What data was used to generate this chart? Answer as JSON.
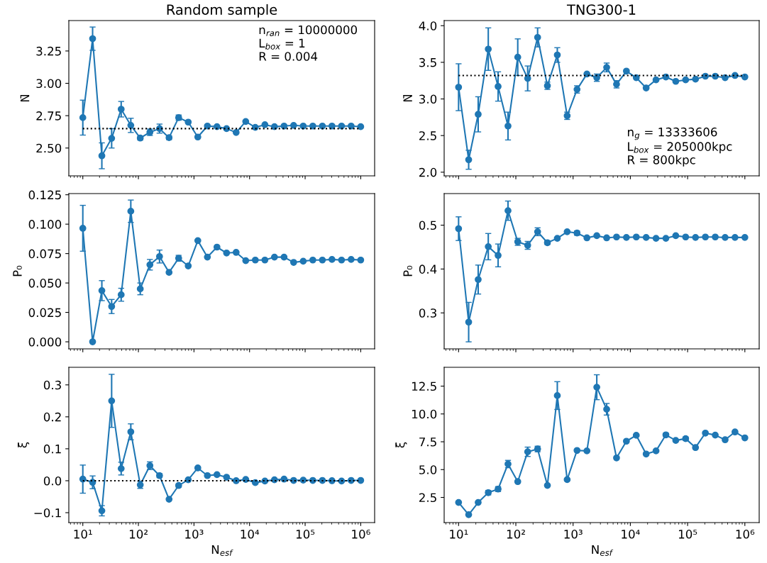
{
  "chart_data": [
    {
      "type": "line",
      "title": "Random sample",
      "ylabel": "N̄",
      "log": "x",
      "marker": "circle",
      "line_style": "solid",
      "grid": false,
      "legend": false,
      "tick_labels": "y",
      "x": [
        10,
        15,
        22,
        33,
        49,
        73,
        108,
        161,
        240,
        356,
        530,
        788,
        1172,
        1743,
        2593,
        3857,
        5736,
        8532,
        12690,
        18874,
        28072,
        41753,
        62102,
        92367,
        137382,
        204336,
        303920,
        452035,
        672336,
        1000000
      ],
      "xlim": [
        5.6,
        1780000
      ],
      "xticks": [
        {
          "value": 10,
          "label": null
        },
        {
          "value": 100,
          "label": null
        },
        {
          "value": 1000,
          "label": null
        },
        {
          "value": 10000,
          "label": null
        },
        {
          "value": 100000,
          "label": null
        },
        {
          "value": 1000000,
          "label": null
        }
      ],
      "ylim": [
        2.285,
        3.485
      ],
      "yticks": [
        {
          "value": 2.5,
          "label": "2.50"
        },
        {
          "value": 2.75,
          "label": "2.75"
        },
        {
          "value": 3.0,
          "label": "3.00"
        },
        {
          "value": 3.25,
          "label": "3.25"
        }
      ],
      "ref_lines": [
        {
          "axis": "y",
          "value": 2.65,
          "color": "#000000",
          "line_style": "dotted"
        }
      ],
      "annotations": [
        "n$_{ran}$ = 10000000",
        "L$_{box}$ = 1",
        "R = 0.004"
      ],
      "series": [
        {
          "color": "#1f77b4",
          "values": [
            2.735,
            3.345,
            2.44,
            2.575,
            2.8,
            2.675,
            2.577,
            2.622,
            2.65,
            2.58,
            2.735,
            2.7,
            2.585,
            2.67,
            2.665,
            2.65,
            2.62,
            2.705,
            2.66,
            2.68,
            2.665,
            2.67,
            2.675,
            2.67,
            2.67,
            2.67,
            2.67,
            2.67,
            2.67,
            2.665
          ],
          "errors": [
            0.135,
            0.09,
            0.1,
            0.075,
            0.06,
            0.055,
            0.015,
            0.025,
            0.035,
            0.015,
            0.02,
            null,
            null,
            null,
            null,
            null,
            null,
            null,
            null,
            null,
            null,
            null,
            null,
            null,
            null,
            null,
            null,
            null,
            null,
            null
          ]
        }
      ]
    },
    {
      "type": "line",
      "title": "TNG300-1",
      "ylabel": "N̄",
      "log": "x",
      "marker": "circle",
      "line_style": "solid",
      "grid": false,
      "legend": false,
      "tick_labels": "y",
      "x": [
        10,
        15,
        22,
        33,
        49,
        73,
        108,
        161,
        240,
        356,
        530,
        788,
        1172,
        1743,
        2593,
        3857,
        5736,
        8532,
        12690,
        18874,
        28072,
        41753,
        62102,
        92367,
        137382,
        204336,
        303920,
        452035,
        672336,
        1000000
      ],
      "xlim": [
        5.6,
        1780000
      ],
      "xticks": [
        {
          "value": 10,
          "label": null
        },
        {
          "value": 100,
          "label": null
        },
        {
          "value": 1000,
          "label": null
        },
        {
          "value": 10000,
          "label": null
        },
        {
          "value": 100000,
          "label": null
        },
        {
          "value": 1000000,
          "label": null
        }
      ],
      "ylim": [
        1.95,
        4.07
      ],
      "yticks": [
        {
          "value": 2.0,
          "label": "2.0"
        },
        {
          "value": 2.5,
          "label": "2.5"
        },
        {
          "value": 3.0,
          "label": "3.0"
        },
        {
          "value": 3.5,
          "label": "3.5"
        },
        {
          "value": 4.0,
          "label": "4.0"
        }
      ],
      "ref_lines": [
        {
          "axis": "y",
          "value": 3.32,
          "color": "#000000",
          "line_style": "dotted"
        }
      ],
      "annotations": [
        "n$_{g}$ = 13333606",
        "L$_{box}$ = 205000kpc",
        "R = 800kpc"
      ],
      "series": [
        {
          "color": "#1f77b4",
          "values": [
            3.16,
            2.17,
            2.79,
            3.68,
            3.17,
            2.63,
            3.57,
            3.28,
            3.84,
            3.18,
            3.6,
            2.77,
            3.13,
            3.34,
            3.29,
            3.43,
            3.2,
            3.38,
            3.29,
            3.15,
            3.26,
            3.3,
            3.24,
            3.26,
            3.27,
            3.31,
            3.31,
            3.29,
            3.32,
            3.3
          ],
          "errors": [
            0.32,
            0.13,
            0.24,
            0.29,
            0.2,
            0.19,
            0.25,
            0.17,
            0.13,
            0.05,
            0.1,
            0.05,
            0.05,
            null,
            0.05,
            0.06,
            0.05,
            null,
            null,
            null,
            null,
            null,
            null,
            null,
            null,
            null,
            null,
            null,
            null,
            null
          ]
        }
      ]
    },
    {
      "type": "line",
      "ylabel": "P₀",
      "log": "x",
      "marker": "circle",
      "line_style": "solid",
      "grid": false,
      "legend": false,
      "tick_labels": "y",
      "x": [
        10,
        15,
        22,
        33,
        49,
        73,
        108,
        161,
        240,
        356,
        530,
        788,
        1172,
        1743,
        2593,
        3857,
        5736,
        8532,
        12690,
        18874,
        28072,
        41753,
        62102,
        92367,
        137382,
        204336,
        303920,
        452035,
        672336,
        1000000
      ],
      "xlim": [
        5.6,
        1780000
      ],
      "xticks": [
        {
          "value": 10,
          "label": null
        },
        {
          "value": 100,
          "label": null
        },
        {
          "value": 1000,
          "label": null
        },
        {
          "value": 10000,
          "label": null
        },
        {
          "value": 100000,
          "label": null
        },
        {
          "value": 1000000,
          "label": null
        }
      ],
      "ylim": [
        -0.006,
        0.126
      ],
      "yticks": [
        {
          "value": 0.0,
          "label": "0.000"
        },
        {
          "value": 0.025,
          "label": "0.025"
        },
        {
          "value": 0.05,
          "label": "0.050"
        },
        {
          "value": 0.075,
          "label": "0.075"
        },
        {
          "value": 0.1,
          "label": "0.100"
        },
        {
          "value": 0.125,
          "label": "0.125"
        }
      ],
      "series": [
        {
          "color": "#1f77b4",
          "values": [
            0.0965,
            0.0,
            0.0435,
            0.03,
            0.04,
            0.111,
            0.045,
            0.0655,
            0.0725,
            0.059,
            0.071,
            0.0645,
            0.086,
            0.072,
            0.0805,
            0.0755,
            0.076,
            0.069,
            0.0695,
            0.0695,
            0.072,
            0.072,
            0.0675,
            0.0685,
            0.0695,
            0.0695,
            0.07,
            0.0695,
            0.07,
            0.0695
          ],
          "errors": [
            0.0195,
            null,
            0.0085,
            0.006,
            0.0055,
            0.0095,
            0.005,
            0.0045,
            0.0055,
            null,
            0.0025,
            null,
            null,
            null,
            null,
            null,
            null,
            null,
            null,
            null,
            null,
            null,
            null,
            null,
            null,
            null,
            null,
            null,
            null,
            null
          ]
        }
      ]
    },
    {
      "type": "line",
      "ylabel": "P₀",
      "log": "x",
      "marker": "circle",
      "line_style": "solid",
      "grid": false,
      "legend": false,
      "tick_labels": "y",
      "x": [
        10,
        15,
        22,
        33,
        49,
        73,
        108,
        161,
        240,
        356,
        530,
        788,
        1172,
        1743,
        2593,
        3857,
        5736,
        8532,
        12690,
        18874,
        28072,
        41753,
        62102,
        92367,
        137382,
        204336,
        303920,
        452035,
        672336,
        1000000
      ],
      "xlim": [
        5.6,
        1780000
      ],
      "xticks": [
        {
          "value": 10,
          "label": null
        },
        {
          "value": 100,
          "label": null
        },
        {
          "value": 1000,
          "label": null
        },
        {
          "value": 10000,
          "label": null
        },
        {
          "value": 100000,
          "label": null
        },
        {
          "value": 1000000,
          "label": null
        }
      ],
      "ylim": [
        0.218,
        0.572
      ],
      "yticks": [
        {
          "value": 0.3,
          "label": "0.3"
        },
        {
          "value": 0.4,
          "label": "0.4"
        },
        {
          "value": 0.5,
          "label": "0.5"
        }
      ],
      "series": [
        {
          "color": "#1f77b4",
          "values": [
            0.492,
            0.279,
            0.376,
            0.451,
            0.431,
            0.533,
            0.462,
            0.454,
            0.485,
            0.46,
            0.47,
            0.485,
            0.482,
            0.471,
            0.476,
            0.471,
            0.473,
            0.472,
            0.473,
            0.472,
            0.47,
            0.47,
            0.476,
            0.473,
            0.472,
            0.473,
            0.473,
            0.472,
            0.472,
            0.472
          ],
          "errors": [
            0.027,
            0.045,
            0.033,
            0.03,
            0.026,
            0.022,
            0.008,
            0.009,
            0.009,
            0.004,
            null,
            null,
            0.005,
            null,
            null,
            null,
            null,
            null,
            null,
            null,
            null,
            null,
            null,
            null,
            null,
            null,
            null,
            null,
            null,
            null
          ]
        }
      ]
    },
    {
      "type": "line",
      "ylabel": "ξ̄",
      "xlabel": "N$_{esf}$",
      "log": "x",
      "marker": "circle",
      "line_style": "solid",
      "grid": false,
      "legend": false,
      "x": [
        10,
        15,
        22,
        33,
        49,
        73,
        108,
        161,
        240,
        356,
        530,
        788,
        1172,
        1743,
        2593,
        3857,
        5736,
        8532,
        12690,
        18874,
        28072,
        41753,
        62102,
        92367,
        137382,
        204336,
        303920,
        452035,
        672336,
        1000000
      ],
      "xlim": [
        5.6,
        1780000
      ],
      "xticks": [
        {
          "value": 10,
          "label": "10¹"
        },
        {
          "value": 100,
          "label": "10²"
        },
        {
          "value": 1000,
          "label": "10³"
        },
        {
          "value": 10000,
          "label": "10⁴"
        },
        {
          "value": 100000,
          "label": "10⁵"
        },
        {
          "value": 1000000,
          "label": "10⁶"
        }
      ],
      "ylim": [
        -0.131,
        0.355
      ],
      "yticks": [
        {
          "value": -0.1,
          "label": "−0.1"
        },
        {
          "value": 0.0,
          "label": "0.0"
        },
        {
          "value": 0.1,
          "label": "0.1"
        },
        {
          "value": 0.2,
          "label": "0.2"
        },
        {
          "value": 0.3,
          "label": "0.3"
        }
      ],
      "ref_lines": [
        {
          "axis": "y",
          "value": 0,
          "color": "#000000",
          "line_style": "dotted"
        }
      ],
      "series": [
        {
          "color": "#1f77b4",
          "values": [
            0.005,
            -0.005,
            -0.094,
            0.25,
            0.038,
            0.153,
            -0.013,
            0.047,
            0.016,
            -0.058,
            -0.015,
            0.003,
            0.04,
            0.016,
            0.019,
            0.011,
            0.0,
            0.004,
            -0.006,
            -0.001,
            0.003,
            0.005,
            0.001,
            0.002,
            0.001,
            0.001,
            0.0,
            -0.001,
            0.001,
            0.001
          ],
          "errors": [
            0.044,
            0.02,
            0.016,
            0.083,
            0.02,
            0.025,
            0.011,
            0.012,
            0.006,
            null,
            0.005,
            null,
            null,
            null,
            null,
            null,
            null,
            null,
            null,
            null,
            null,
            null,
            null,
            null,
            null,
            null,
            null,
            null,
            null,
            null
          ]
        }
      ]
    },
    {
      "type": "line",
      "ylabel": "ξ̄",
      "xlabel": "N$_{esf}$",
      "log": "x",
      "marker": "circle",
      "line_style": "solid",
      "grid": false,
      "legend": false,
      "x": [
        10,
        15,
        22,
        33,
        49,
        73,
        108,
        161,
        240,
        356,
        530,
        788,
        1172,
        1743,
        2593,
        3857,
        5736,
        8532,
        12690,
        18874,
        28072,
        41753,
        62102,
        92367,
        137382,
        204336,
        303920,
        452035,
        672336,
        1000000
      ],
      "xlim": [
        5.6,
        1780000
      ],
      "xticks": [
        {
          "value": 10,
          "label": "10¹"
        },
        {
          "value": 100,
          "label": "10²"
        },
        {
          "value": 1000,
          "label": "10³"
        },
        {
          "value": 10000,
          "label": "10⁴"
        },
        {
          "value": 100000,
          "label": "10⁵"
        },
        {
          "value": 1000000,
          "label": "10⁶"
        }
      ],
      "ylim": [
        0.24,
        14.19
      ],
      "yticks": [
        {
          "value": 2.5,
          "label": "2.5"
        },
        {
          "value": 5,
          "label": "5.0"
        },
        {
          "value": 7.5,
          "label": "7.5"
        },
        {
          "value": 10,
          "label": "10.0"
        },
        {
          "value": 12.5,
          "label": "12.5"
        }
      ],
      "series": [
        {
          "color": "#1f77b4",
          "values": [
            2.05,
            0.95,
            2.05,
            2.93,
            3.25,
            5.5,
            3.92,
            6.6,
            6.85,
            3.58,
            11.65,
            4.1,
            6.72,
            6.68,
            12.4,
            10.42,
            6.05,
            7.55,
            8.08,
            6.4,
            6.68,
            8.12,
            7.62,
            7.78,
            6.98,
            8.28,
            8.1,
            7.68,
            8.38,
            7.85
          ],
          "errors": [
            null,
            null,
            null,
            0.2,
            0.22,
            0.33,
            null,
            0.42,
            0.25,
            null,
            1.25,
            null,
            null,
            null,
            1.12,
            0.52,
            null,
            null,
            null,
            null,
            null,
            0.15,
            null,
            0.15,
            null,
            null,
            null,
            null,
            null,
            null
          ]
        }
      ]
    }
  ]
}
